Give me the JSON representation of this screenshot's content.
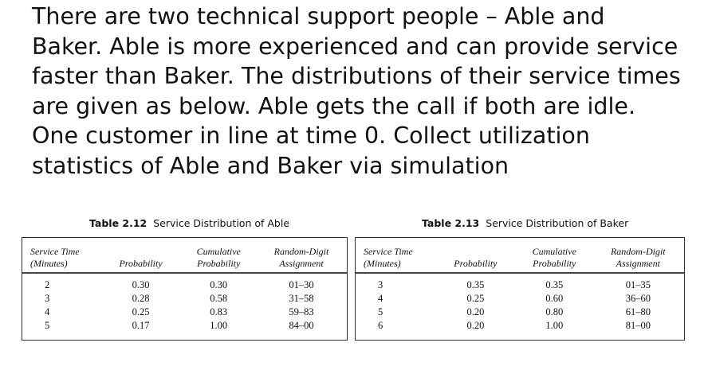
{
  "paragraph_lines": [
    "There are two technical support people – Able and",
    "Baker. Able is more experienced and can provide service",
    "faster than Baker. The distributions of their service times",
    "are given as below. Able gets the call if both are idle.",
    "One customer in line at time 0. Collect utilization",
    "statistics of Able and Baker via simulation"
  ],
  "tables": [
    {
      "number": "Table 2.12",
      "title": "Service Distribution of Able",
      "headers": [
        "Service Time",
        "(Minutes)",
        "Probability",
        "Cumulative",
        "Probability",
        "Random-Digit",
        "Assignment"
      ],
      "rows": [
        [
          "2",
          "0.30",
          "0.30",
          "01–30"
        ],
        [
          "3",
          "0.28",
          "0.58",
          "31–58"
        ],
        [
          "4",
          "0.25",
          "0.83",
          "59–83"
        ],
        [
          "5",
          "0.17",
          "1.00",
          "84–00"
        ]
      ]
    },
    {
      "number": "Table 2.13",
      "title": "Service Distribution of Baker",
      "headers": [
        "Service Time",
        "(Minutes)",
        "Probability",
        "Cumulative",
        "Probability",
        "Random-Digit",
        "Assignment"
      ],
      "rows": [
        [
          "3",
          "0.35",
          "0.35",
          "01–35"
        ],
        [
          "4",
          "0.25",
          "0.60",
          "36–60"
        ],
        [
          "5",
          "0.20",
          "0.80",
          "61–80"
        ],
        [
          "6",
          "0.20",
          "1.00",
          "81–00"
        ]
      ]
    }
  ]
}
